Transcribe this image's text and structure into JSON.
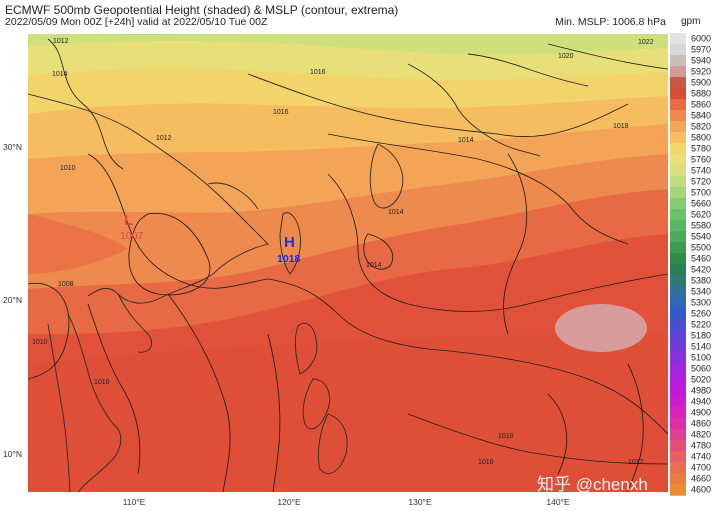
{
  "header": {
    "title": "ECMWF 500mb Geopotential Height (shaded) & MSLP (contour, extrema)",
    "subtitle": "2022/05/09 Mon 00Z [+24h] valid at 2022/05/10 Tue 00Z",
    "min_mslp": "Min. MSLP: 1006.8 hPa",
    "unit": "gpm"
  },
  "axes": {
    "lat_labels": [
      "30°N",
      "20°N",
      "10°N"
    ],
    "lon_labels": [
      "110°E",
      "120°E",
      "130°E",
      "140°E"
    ]
  },
  "colorbar": {
    "levels": [
      "6000",
      "5970",
      "5940",
      "5920",
      "5900",
      "5880",
      "5860",
      "5840",
      "5820",
      "5800",
      "5780",
      "5760",
      "5740",
      "5720",
      "5700",
      "5660",
      "5620",
      "5580",
      "5540",
      "5500",
      "5460",
      "5420",
      "5380",
      "5340",
      "5300",
      "5260",
      "5220",
      "5180",
      "5140",
      "5100",
      "5060",
      "5020",
      "4980",
      "4940",
      "4900",
      "4860",
      "4820",
      "4780",
      "4740",
      "4700",
      "4660",
      "4600"
    ],
    "colors": [
      "#e2e2e2",
      "#d8d8d8",
      "#ccbdbd",
      "#d49a9a",
      "#c65a47",
      "#d64e35",
      "#e86b45",
      "#f08a4e",
      "#f5a457",
      "#f7be62",
      "#f4d56c",
      "#eadf78",
      "#d7e07c",
      "#bfdd7d",
      "#a4d57a",
      "#87cc73",
      "#6cc26b",
      "#57b763",
      "#49ab5b",
      "#3d9c53",
      "#2f8c4a",
      "#2a7e57",
      "#2f7a75",
      "#30729a",
      "#2f66b6",
      "#3559c7",
      "#4a4fd2",
      "#5e45d8",
      "#7439dd",
      "#8a2fe0",
      "#9f26e2",
      "#b11fe0",
      "#c01bd9",
      "#cd1ccd",
      "#d624bc",
      "#dc31a6",
      "#e1408f",
      "#e44f78",
      "#e65f63",
      "#e86f50",
      "#e97f3f",
      "#e98e30"
    ]
  },
  "map": {
    "centers": [
      {
        "type": "L",
        "value": "1007",
        "color": "#d84a4a"
      },
      {
        "type": "H",
        "value": "1018",
        "color": "#1c2fd9"
      }
    ],
    "isobar_labels": [
      "1012",
      "1014",
      "1010",
      "1012",
      "1016",
      "1008",
      "1010",
      "1010",
      "1014",
      "1014",
      "1018",
      "1022",
      "1020",
      "1014",
      "1010",
      "1010",
      "1012",
      "1016"
    ]
  },
  "watermark": "知乎 @chenxh"
}
